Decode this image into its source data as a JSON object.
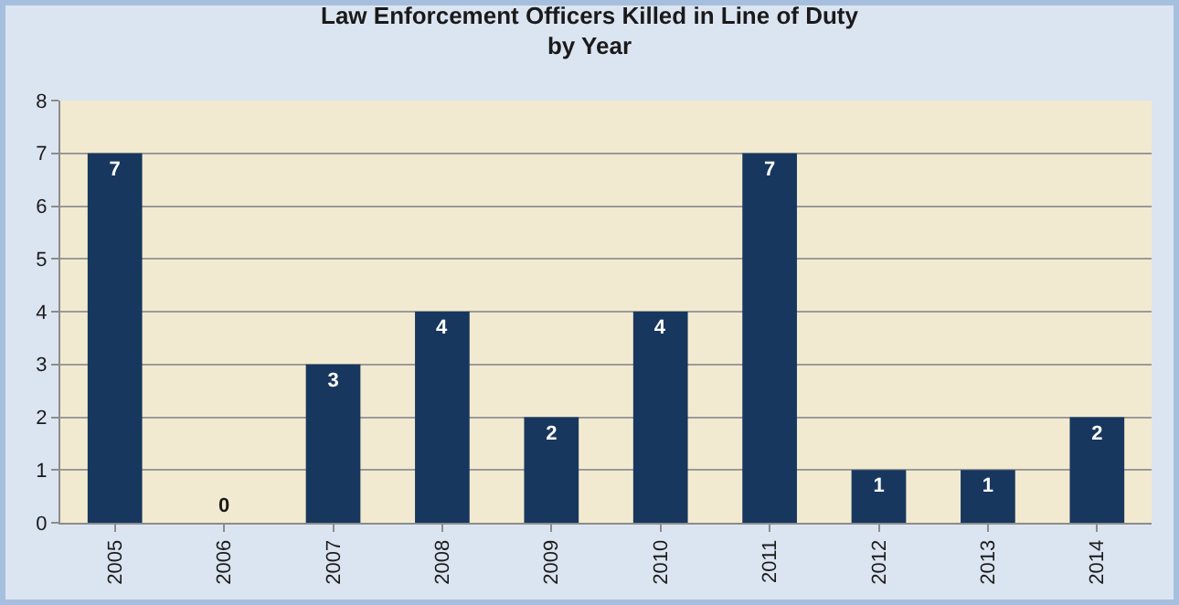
{
  "chart_data": {
    "type": "bar",
    "title": "Law Enforcement Officers Killed in Line of Duty\nby Year",
    "categories": [
      "2005",
      "2006",
      "2007",
      "2008",
      "2009",
      "2010",
      "2011",
      "2012",
      "2013",
      "2014"
    ],
    "values": [
      7,
      0,
      3,
      4,
      2,
      4,
      7,
      1,
      1,
      2
    ],
    "color": "#17375e",
    "ylim": [
      0,
      8
    ],
    "yticks": [
      0,
      1,
      2,
      3,
      4,
      5,
      6,
      7,
      8
    ],
    "grid": true,
    "data_labels": true
  }
}
